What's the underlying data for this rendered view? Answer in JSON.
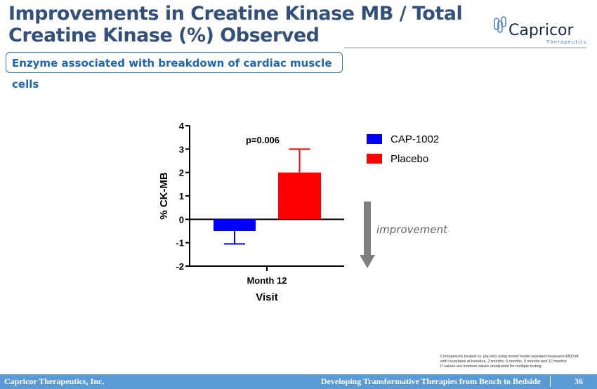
{
  "title": "Improvements in Creatine Kinase MB / Total Creatine Kinase (%) Observed",
  "title_line1": "Improvements in Creatine Kinase MB / Total",
  "title_line2": "Creatine Kinase (%) Observed",
  "logo": {
    "name": "Capricor",
    "tagline": "Therapeutics"
  },
  "subtitle": "Enzyme associated with breakdown of cardiac muscle cells",
  "chart_data": {
    "type": "bar",
    "categories": [
      "Month 12"
    ],
    "series": [
      {
        "name": "CAP-1002",
        "values": [
          -0.5
        ],
        "error_upper": [
          -1.05
        ],
        "color": "#0000ff"
      },
      {
        "name": "Placebo",
        "values": [
          2.0
        ],
        "error_upper": [
          3.0
        ],
        "color": "#ff0000"
      }
    ],
    "xlabel": "Visit",
    "ylabel": "% CK-MB",
    "ylim": [
      -2,
      4
    ],
    "yticks": [
      "4",
      "3",
      "2",
      "1",
      "0",
      "-1",
      "-2"
    ],
    "annotation": "p=0.006",
    "legend": "right"
  },
  "improvement_label": "improvement",
  "notes": [
    "Comparisons treated vs. placebo using mixed model repeated measures ANOVA",
    "with covariates at baseline, 3 months, 6 months, 9 months and 12 months",
    "P-values are nominal values unadjusted for multiple testing"
  ],
  "footer": {
    "company": "Capricor Therapeutics, Inc.",
    "tagline": "Developing Transformative Therapies from Bench to Bedside",
    "page": "36"
  }
}
